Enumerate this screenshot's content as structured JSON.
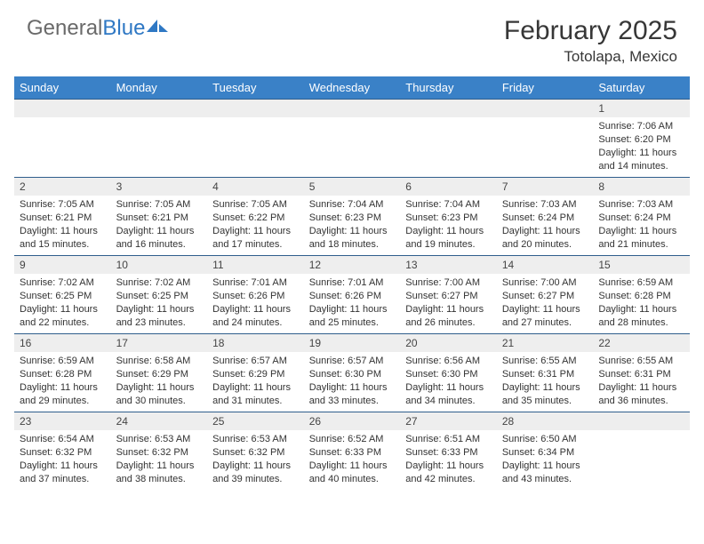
{
  "brand": {
    "part1": "General",
    "part2": "Blue"
  },
  "title": "February 2025",
  "location": "Totolapa, Mexico",
  "colors": {
    "header_bg": "#3a81c7",
    "band_bg": "#eeeeee",
    "rule": "#2f5e8c",
    "text": "#333333",
    "brand_blue": "#2f78c4"
  },
  "dayNames": [
    "Sunday",
    "Monday",
    "Tuesday",
    "Wednesday",
    "Thursday",
    "Friday",
    "Saturday"
  ],
  "weeks": [
    [
      null,
      null,
      null,
      null,
      null,
      null,
      {
        "n": "1",
        "sunrise": "7:06 AM",
        "sunset": "6:20 PM",
        "daylight": "11 hours and 14 minutes."
      }
    ],
    [
      {
        "n": "2",
        "sunrise": "7:05 AM",
        "sunset": "6:21 PM",
        "daylight": "11 hours and 15 minutes."
      },
      {
        "n": "3",
        "sunrise": "7:05 AM",
        "sunset": "6:21 PM",
        "daylight": "11 hours and 16 minutes."
      },
      {
        "n": "4",
        "sunrise": "7:05 AM",
        "sunset": "6:22 PM",
        "daylight": "11 hours and 17 minutes."
      },
      {
        "n": "5",
        "sunrise": "7:04 AM",
        "sunset": "6:23 PM",
        "daylight": "11 hours and 18 minutes."
      },
      {
        "n": "6",
        "sunrise": "7:04 AM",
        "sunset": "6:23 PM",
        "daylight": "11 hours and 19 minutes."
      },
      {
        "n": "7",
        "sunrise": "7:03 AM",
        "sunset": "6:24 PM",
        "daylight": "11 hours and 20 minutes."
      },
      {
        "n": "8",
        "sunrise": "7:03 AM",
        "sunset": "6:24 PM",
        "daylight": "11 hours and 21 minutes."
      }
    ],
    [
      {
        "n": "9",
        "sunrise": "7:02 AM",
        "sunset": "6:25 PM",
        "daylight": "11 hours and 22 minutes."
      },
      {
        "n": "10",
        "sunrise": "7:02 AM",
        "sunset": "6:25 PM",
        "daylight": "11 hours and 23 minutes."
      },
      {
        "n": "11",
        "sunrise": "7:01 AM",
        "sunset": "6:26 PM",
        "daylight": "11 hours and 24 minutes."
      },
      {
        "n": "12",
        "sunrise": "7:01 AM",
        "sunset": "6:26 PM",
        "daylight": "11 hours and 25 minutes."
      },
      {
        "n": "13",
        "sunrise": "7:00 AM",
        "sunset": "6:27 PM",
        "daylight": "11 hours and 26 minutes."
      },
      {
        "n": "14",
        "sunrise": "7:00 AM",
        "sunset": "6:27 PM",
        "daylight": "11 hours and 27 minutes."
      },
      {
        "n": "15",
        "sunrise": "6:59 AM",
        "sunset": "6:28 PM",
        "daylight": "11 hours and 28 minutes."
      }
    ],
    [
      {
        "n": "16",
        "sunrise": "6:59 AM",
        "sunset": "6:28 PM",
        "daylight": "11 hours and 29 minutes."
      },
      {
        "n": "17",
        "sunrise": "6:58 AM",
        "sunset": "6:29 PM",
        "daylight": "11 hours and 30 minutes."
      },
      {
        "n": "18",
        "sunrise": "6:57 AM",
        "sunset": "6:29 PM",
        "daylight": "11 hours and 31 minutes."
      },
      {
        "n": "19",
        "sunrise": "6:57 AM",
        "sunset": "6:30 PM",
        "daylight": "11 hours and 33 minutes."
      },
      {
        "n": "20",
        "sunrise": "6:56 AM",
        "sunset": "6:30 PM",
        "daylight": "11 hours and 34 minutes."
      },
      {
        "n": "21",
        "sunrise": "6:55 AM",
        "sunset": "6:31 PM",
        "daylight": "11 hours and 35 minutes."
      },
      {
        "n": "22",
        "sunrise": "6:55 AM",
        "sunset": "6:31 PM",
        "daylight": "11 hours and 36 minutes."
      }
    ],
    [
      {
        "n": "23",
        "sunrise": "6:54 AM",
        "sunset": "6:32 PM",
        "daylight": "11 hours and 37 minutes."
      },
      {
        "n": "24",
        "sunrise": "6:53 AM",
        "sunset": "6:32 PM",
        "daylight": "11 hours and 38 minutes."
      },
      {
        "n": "25",
        "sunrise": "6:53 AM",
        "sunset": "6:32 PM",
        "daylight": "11 hours and 39 minutes."
      },
      {
        "n": "26",
        "sunrise": "6:52 AM",
        "sunset": "6:33 PM",
        "daylight": "11 hours and 40 minutes."
      },
      {
        "n": "27",
        "sunrise": "6:51 AM",
        "sunset": "6:33 PM",
        "daylight": "11 hours and 42 minutes."
      },
      {
        "n": "28",
        "sunrise": "6:50 AM",
        "sunset": "6:34 PM",
        "daylight": "11 hours and 43 minutes."
      },
      null
    ]
  ],
  "labels": {
    "sunrise": "Sunrise: ",
    "sunset": "Sunset: ",
    "daylight": "Daylight: "
  }
}
